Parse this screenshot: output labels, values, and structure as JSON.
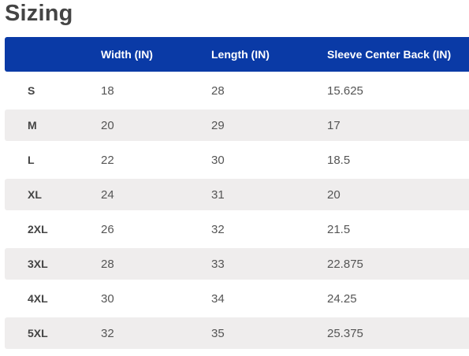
{
  "title": "Sizing",
  "colors": {
    "header_bg": "#0a3aa6",
    "stripe_bg": "#efeded"
  },
  "table": {
    "headers": [
      "",
      "Width (IN)",
      "Length (IN)",
      "Sleeve Center Back (IN)"
    ],
    "rows": [
      [
        "S",
        "18",
        "28",
        "15.625"
      ],
      [
        "M",
        "20",
        "29",
        "17"
      ],
      [
        "L",
        "22",
        "30",
        "18.5"
      ],
      [
        "XL",
        "24",
        "31",
        "20"
      ],
      [
        "2XL",
        "26",
        "32",
        "21.5"
      ],
      [
        "3XL",
        "28",
        "33",
        "22.875"
      ],
      [
        "4XL",
        "30",
        "34",
        "24.25"
      ],
      [
        "5XL",
        "32",
        "35",
        "25.375"
      ]
    ]
  }
}
